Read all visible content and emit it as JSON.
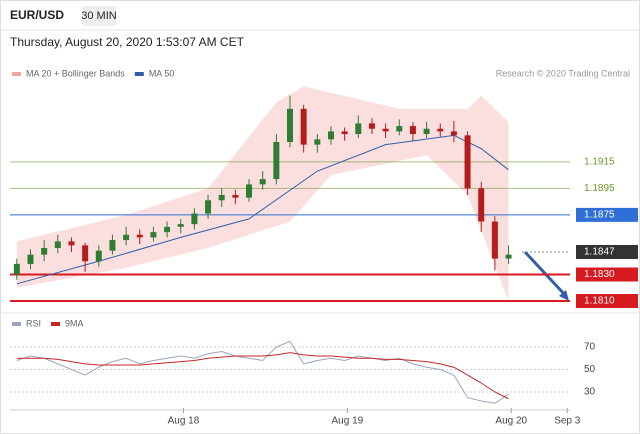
{
  "header": {
    "symbol": "EUR/USD",
    "interval": "30 MIN",
    "timestamp": "Thursday, August 20, 2020 1:53:07 AM CET"
  },
  "chart_data": [
    {
      "type": "candlestick",
      "legend": [
        {
          "name": "MA 20 + Bollinger Bands",
          "color": "#f4a3a3"
        },
        {
          "name": "MA 50",
          "color": "#2f5fa8"
        }
      ],
      "credit": "Research © 2020 Trading Central",
      "up_color": "#2e7d32",
      "down_color": "#b71c1c",
      "candles": [
        [
          1.183,
          1.1842,
          1.1826,
          1.1838
        ],
        [
          1.1838,
          1.1849,
          1.1834,
          1.1845
        ],
        [
          1.1845,
          1.1856,
          1.184,
          1.185
        ],
        [
          1.185,
          1.186,
          1.1846,
          1.1855
        ],
        [
          1.1855,
          1.1858,
          1.1847,
          1.1852
        ],
        [
          1.1852,
          1.1854,
          1.1832,
          1.184
        ],
        [
          1.184,
          1.1852,
          1.1836,
          1.1848
        ],
        [
          1.1848,
          1.186,
          1.1845,
          1.1856
        ],
        [
          1.1856,
          1.1866,
          1.1852,
          1.186
        ],
        [
          1.186,
          1.1864,
          1.1853,
          1.1858
        ],
        [
          1.1858,
          1.1866,
          1.1855,
          1.1862
        ],
        [
          1.1862,
          1.187,
          1.1858,
          1.1866
        ],
        [
          1.1866,
          1.1872,
          1.1861,
          1.1868
        ],
        [
          1.1868,
          1.188,
          1.1864,
          1.1876
        ],
        [
          1.1876,
          1.189,
          1.1872,
          1.1886
        ],
        [
          1.1886,
          1.1895,
          1.1881,
          1.189
        ],
        [
          1.189,
          1.1894,
          1.1883,
          1.1888
        ],
        [
          1.1888,
          1.1902,
          1.1885,
          1.1898
        ],
        [
          1.1898,
          1.1908,
          1.1894,
          1.1902
        ],
        [
          1.1902,
          1.1936,
          1.1898,
          1.193
        ],
        [
          1.193,
          1.1965,
          1.1926,
          1.1955
        ],
        [
          1.1955,
          1.1958,
          1.1922,
          1.1928
        ],
        [
          1.1928,
          1.1936,
          1.1922,
          1.1932
        ],
        [
          1.1932,
          1.1942,
          1.1928,
          1.1938
        ],
        [
          1.1938,
          1.1941,
          1.1931,
          1.1936
        ],
        [
          1.1936,
          1.195,
          1.1933,
          1.1944
        ],
        [
          1.1944,
          1.1948,
          1.1936,
          1.194
        ],
        [
          1.194,
          1.1944,
          1.1933,
          1.1938
        ],
        [
          1.1938,
          1.1947,
          1.1935,
          1.1942
        ],
        [
          1.1942,
          1.1945,
          1.1931,
          1.1936
        ],
        [
          1.1936,
          1.1945,
          1.1933,
          1.194
        ],
        [
          1.194,
          1.1944,
          1.1934,
          1.1938
        ],
        [
          1.1938,
          1.1946,
          1.193,
          1.1935
        ],
        [
          1.1935,
          1.1938,
          1.189,
          1.1895
        ],
        [
          1.1895,
          1.19,
          1.1862,
          1.187
        ],
        [
          1.187,
          1.1874,
          1.1833,
          1.1842
        ],
        [
          1.1842,
          1.1852,
          1.1838,
          1.1845
        ]
      ],
      "ma50": {
        "x": [
          0,
          6,
          12,
          17,
          22,
          27,
          32,
          34,
          36
        ],
        "values": [
          1.1823,
          1.184,
          1.1858,
          1.1872,
          1.1908,
          1.1928,
          1.1935,
          1.1925,
          1.1909
        ]
      },
      "bollinger_upper": {
        "x": [
          0,
          8,
          14,
          19,
          21,
          28,
          33,
          34,
          36
        ],
        "values": [
          1.1855,
          1.1875,
          1.1895,
          1.196,
          1.1972,
          1.1955,
          1.1955,
          1.1965,
          1.1945
        ]
      },
      "bollinger_lower": {
        "x": [
          0,
          8,
          14,
          17,
          20,
          23,
          30,
          33,
          36
        ],
        "values": [
          1.182,
          1.1835,
          1.185,
          1.186,
          1.187,
          1.1905,
          1.192,
          1.189,
          1.181
        ]
      },
      "levels": [
        {
          "value": 1.1915,
          "color": "#6a9a2a",
          "style": "text"
        },
        {
          "value": 1.1895,
          "color": "#6a9a2a",
          "style": "text"
        },
        {
          "value": 1.1875,
          "color": "#2f6fd6",
          "style": "box"
        },
        {
          "value": 1.1847,
          "color": "#333333",
          "style": "current"
        },
        {
          "value": 1.183,
          "label": "1.1830",
          "color": "#d71920",
          "style": "box"
        },
        {
          "value": 1.181,
          "label": "1.1810",
          "color": "#d71920",
          "style": "box"
        }
      ],
      "xlim": [
        -0.5,
        40.5
      ],
      "ylim": [
        1.1807,
        1.1973
      ],
      "xticks": [
        {
          "value": 12.2,
          "label": "Aug 18"
        },
        {
          "value": 24.2,
          "label": "Aug 19"
        },
        {
          "value": 36.2,
          "label": "Aug 20"
        },
        {
          "value": 40.3,
          "label": "Sep 3"
        }
      ]
    },
    {
      "type": "line",
      "series": [
        {
          "name": "RSI",
          "color": "#9aa6bd",
          "values": [
            58,
            62,
            60,
            55,
            50,
            45,
            52,
            57,
            60,
            55,
            58,
            60,
            62,
            60,
            64,
            66,
            62,
            60,
            58,
            70,
            75,
            55,
            58,
            60,
            58,
            62,
            60,
            58,
            60,
            55,
            52,
            50,
            45,
            25,
            22,
            20,
            28
          ]
        },
        {
          "name": "9MA",
          "color": "#c62828",
          "values": [
            60,
            60,
            60,
            59,
            57,
            55,
            54,
            54,
            54,
            54,
            55,
            56,
            57,
            58,
            60,
            61,
            62,
            62,
            62,
            63,
            65,
            63,
            62,
            62,
            61,
            60,
            60,
            59,
            59,
            58,
            57,
            55,
            52,
            45,
            38,
            30,
            24
          ]
        }
      ],
      "ylim": [
        14,
        85.1
      ],
      "yticks": [
        30,
        50,
        70
      ]
    }
  ]
}
